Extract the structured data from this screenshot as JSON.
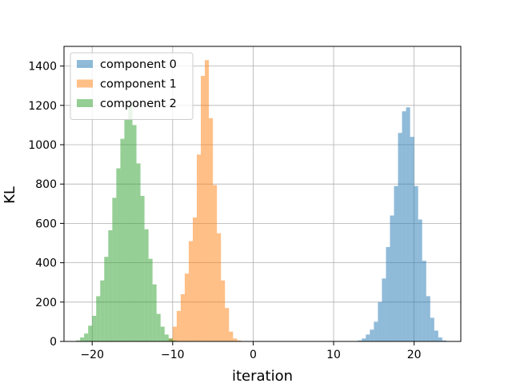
{
  "chart_data": {
    "type": "bar",
    "title": "",
    "xlabel": "iteration",
    "ylabel": "KL",
    "xlim": [
      -23.5,
      25.8
    ],
    "ylim": [
      0,
      1500
    ],
    "xticks": [
      -20,
      -10,
      0,
      10,
      20
    ],
    "yticks": [
      0,
      200,
      400,
      600,
      800,
      1000,
      1200,
      1400
    ],
    "grid": true,
    "legend_position": "top-left",
    "bin_width": 0.5,
    "series": [
      {
        "name": "component 0",
        "color": "#1f77b4",
        "opacity": 0.5,
        "bins": [
          [
            13.0,
            5
          ],
          [
            13.5,
            15
          ],
          [
            14.0,
            35
          ],
          [
            14.5,
            60
          ],
          [
            15.0,
            100
          ],
          [
            15.5,
            200
          ],
          [
            16.0,
            320
          ],
          [
            16.5,
            480
          ],
          [
            17.0,
            640
          ],
          [
            17.5,
            790
          ],
          [
            18.0,
            1060
          ],
          [
            18.5,
            1170
          ],
          [
            19.0,
            1190
          ],
          [
            19.5,
            1040
          ],
          [
            20.0,
            790
          ],
          [
            20.5,
            620
          ],
          [
            21.0,
            410
          ],
          [
            21.5,
            230
          ],
          [
            22.0,
            120
          ],
          [
            22.5,
            55
          ],
          [
            23.0,
            20
          ],
          [
            23.5,
            5
          ]
        ]
      },
      {
        "name": "component 1",
        "color": "#ff7f0e",
        "opacity": 0.5,
        "bins": [
          [
            -10.5,
            15
          ],
          [
            -10.0,
            75
          ],
          [
            -9.5,
            155
          ],
          [
            -9.0,
            240
          ],
          [
            -8.5,
            345
          ],
          [
            -8.0,
            510
          ],
          [
            -7.5,
            630
          ],
          [
            -7.0,
            950
          ],
          [
            -6.5,
            1350
          ],
          [
            -6.0,
            1430
          ],
          [
            -5.5,
            1135
          ],
          [
            -5.0,
            795
          ],
          [
            -4.5,
            550
          ],
          [
            -4.0,
            310
          ],
          [
            -3.5,
            170
          ],
          [
            -3.0,
            50
          ],
          [
            -2.5,
            15
          ],
          [
            -2.0,
            5
          ]
        ]
      },
      {
        "name": "component 2",
        "color": "#2ca02c",
        "opacity": 0.5,
        "bins": [
          [
            -22.0,
            5
          ],
          [
            -21.5,
            20
          ],
          [
            -21.0,
            40
          ],
          [
            -20.5,
            80
          ],
          [
            -20.0,
            130
          ],
          [
            -19.5,
            230
          ],
          [
            -19.0,
            310
          ],
          [
            -18.5,
            430
          ],
          [
            -18.0,
            565
          ],
          [
            -17.5,
            730
          ],
          [
            -17.0,
            880
          ],
          [
            -16.5,
            1030
          ],
          [
            -16.0,
            1130
          ],
          [
            -15.5,
            1200
          ],
          [
            -15.0,
            1100
          ],
          [
            -14.5,
            905
          ],
          [
            -14.0,
            740
          ],
          [
            -13.5,
            570
          ],
          [
            -13.0,
            420
          ],
          [
            -12.5,
            290
          ],
          [
            -12.0,
            140
          ],
          [
            -11.5,
            75
          ],
          [
            -11.0,
            35
          ],
          [
            -10.5,
            15
          ],
          [
            -10.0,
            5
          ]
        ]
      }
    ]
  }
}
